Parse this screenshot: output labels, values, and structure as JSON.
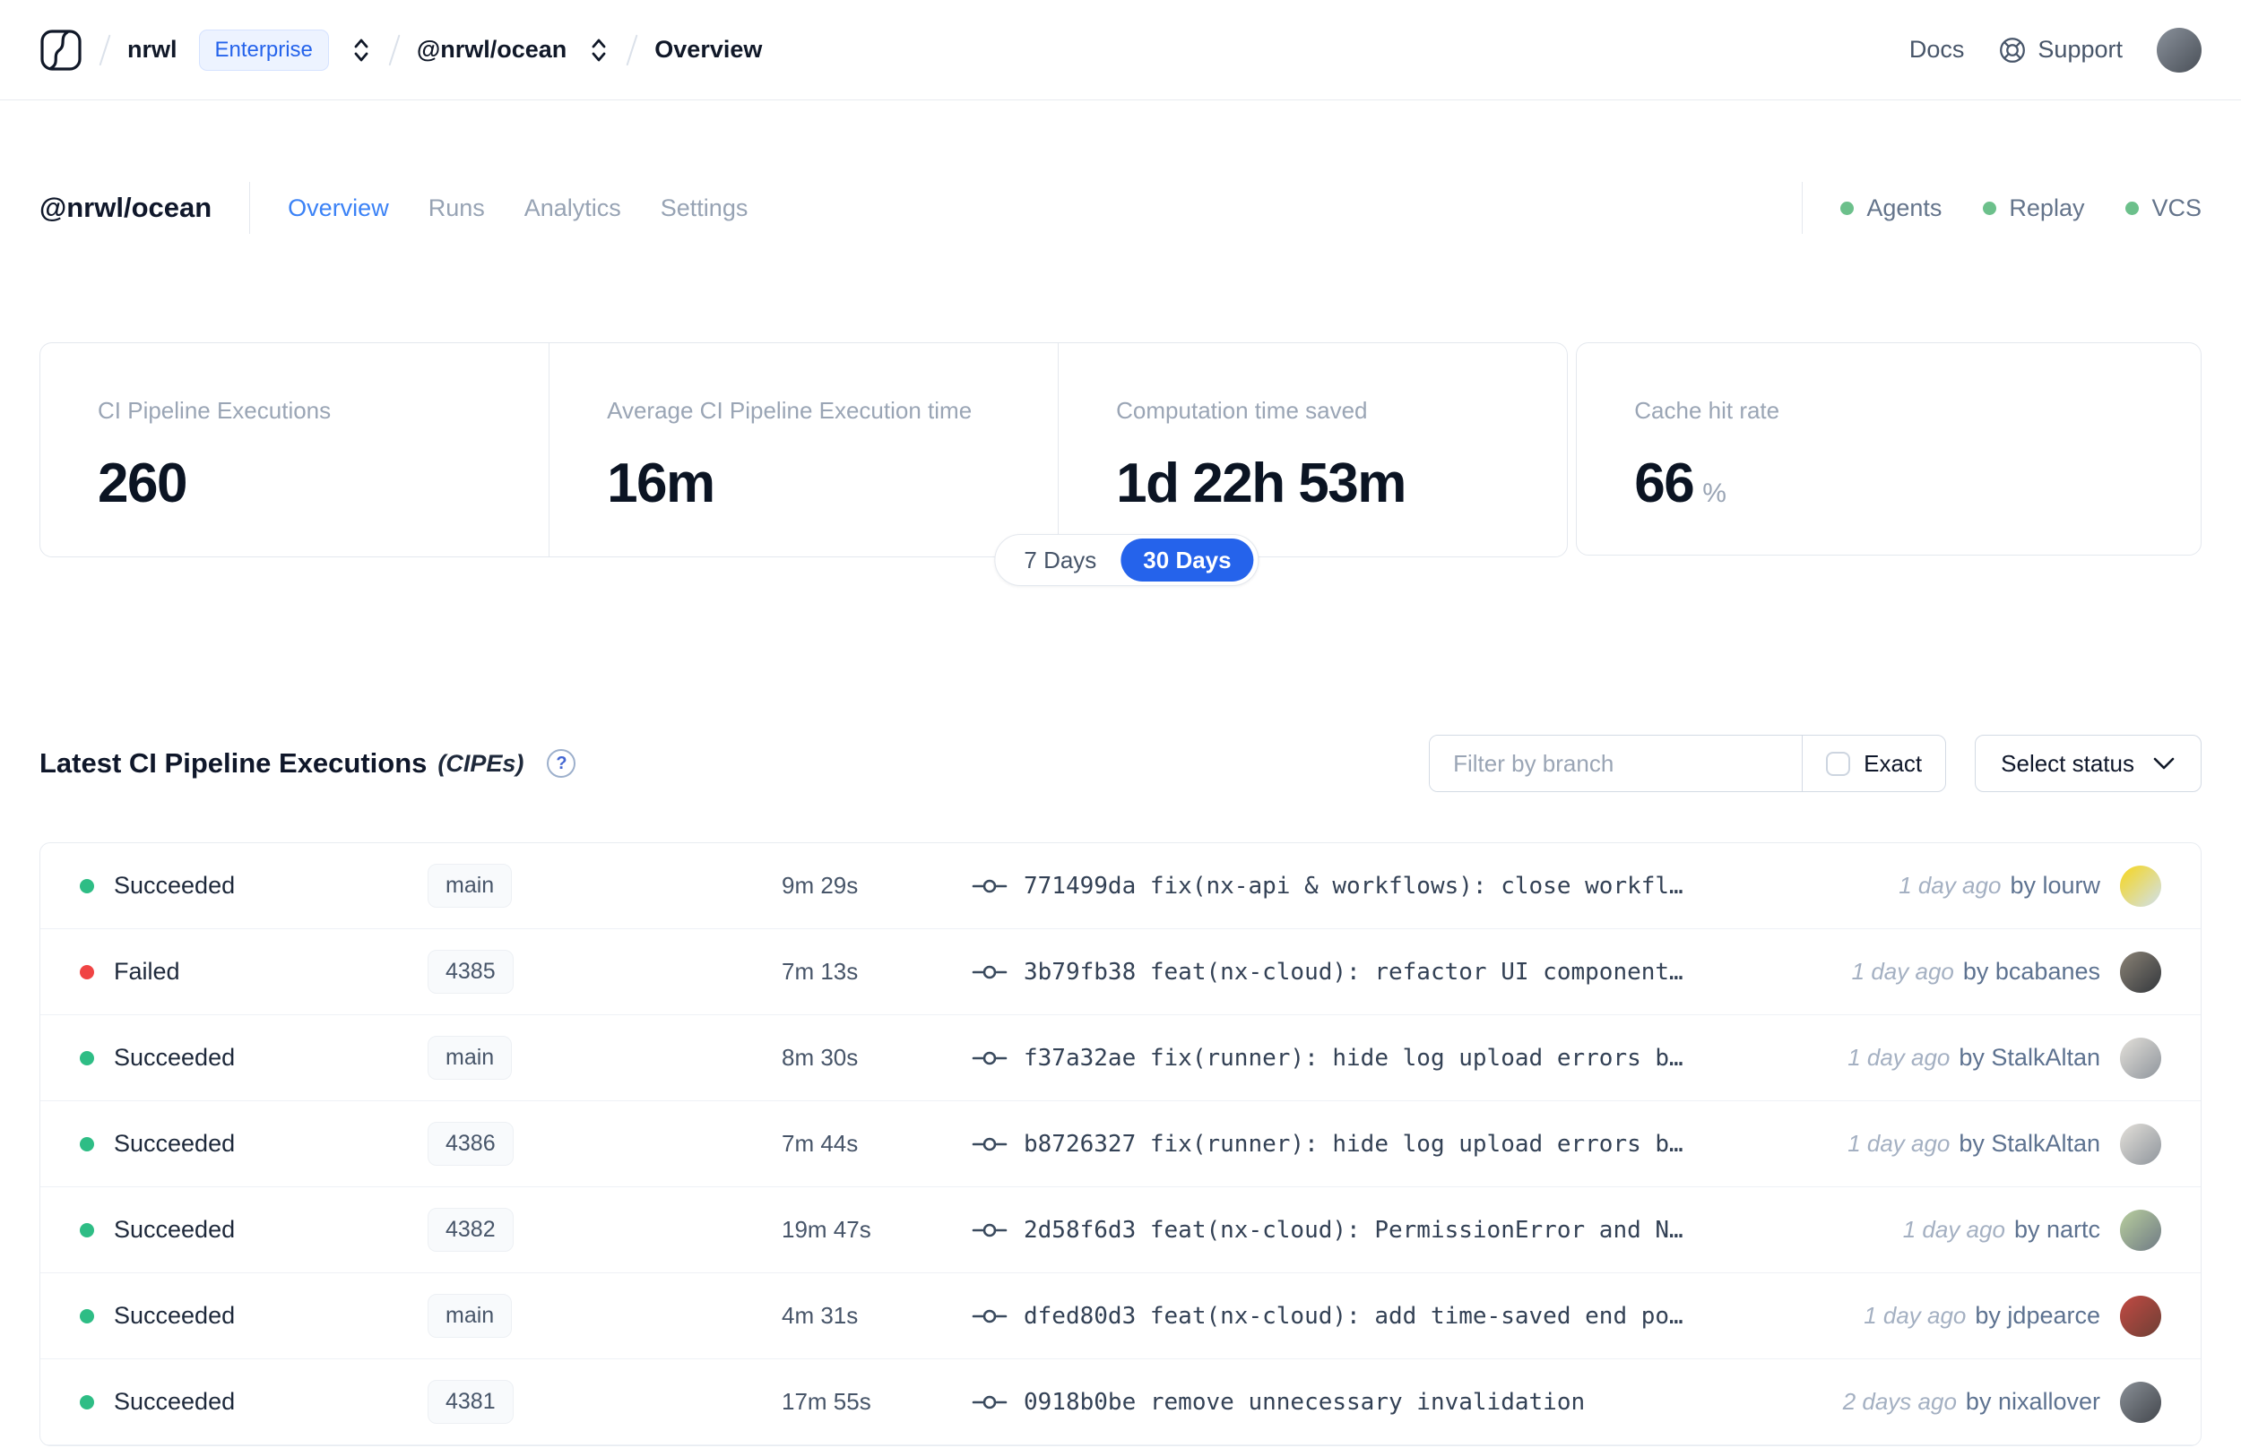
{
  "colors": {
    "accent_blue": "#2563eb",
    "tab_blue": "#3b82f6",
    "success_green": "#2ebd85",
    "failed_red": "#f04444",
    "header_dot_green": "#6cc08b"
  },
  "nav": {
    "org": "nrwl",
    "org_badge": "Enterprise",
    "workspace": "@nrwl/ocean",
    "page": "Overview",
    "docs_label": "Docs",
    "support_label": "Support",
    "avatar_colors": [
      "#8a919b",
      "#4a5058"
    ]
  },
  "workspace_header": {
    "title": "@nrwl/ocean",
    "tabs": [
      {
        "label": "Overview",
        "active": true
      },
      {
        "label": "Runs",
        "active": false
      },
      {
        "label": "Analytics",
        "active": false
      },
      {
        "label": "Settings",
        "active": false
      }
    ],
    "statuses": [
      {
        "label": "Agents"
      },
      {
        "label": "Replay"
      },
      {
        "label": "VCS"
      }
    ]
  },
  "stats": {
    "cards": [
      {
        "label": "CI Pipeline Executions",
        "value": "260"
      },
      {
        "label": "Average CI Pipeline Execution time",
        "value": "16m"
      },
      {
        "label": "Computation time saved",
        "value": "1d 22h 53m"
      },
      {
        "label": "Cache hit rate",
        "value": "66",
        "unit": "%"
      }
    ],
    "range_toggle": {
      "options": [
        "7 Days",
        "30 Days"
      ],
      "selected": "30 Days"
    }
  },
  "cipe_section": {
    "title": "Latest CI Pipeline Executions",
    "title_suffix": "(CIPEs)",
    "help_icon": "?",
    "filter_placeholder": "Filter by branch",
    "exact_label": "Exact",
    "status_select_label": "Select status",
    "rows": [
      {
        "ok": true,
        "status": "Succeeded",
        "branch": "main",
        "duration": "9m 29s",
        "commit": "771499da fix(nx-api & workflows): close workfl…",
        "time_ago": "1 day ago",
        "author": "by lourw",
        "avatar": [
          "#f7d61a",
          "#cfe0ee"
        ]
      },
      {
        "ok": false,
        "status": "Failed",
        "branch": "4385",
        "duration": "7m 13s",
        "commit": "3b79fb38 feat(nx-cloud): refactor UI component…",
        "time_ago": "1 day ago",
        "author": "by bcabanes",
        "avatar": [
          "#8b8376",
          "#33373c"
        ]
      },
      {
        "ok": true,
        "status": "Succeeded",
        "branch": "main",
        "duration": "8m 30s",
        "commit": "f37a32ae fix(runner): hide log upload errors b…",
        "time_ago": "1 day ago",
        "author": "by StalkAltan",
        "avatar": [
          "#e3e0da",
          "#8f959c"
        ]
      },
      {
        "ok": true,
        "status": "Succeeded",
        "branch": "4386",
        "duration": "7m 44s",
        "commit": "b8726327 fix(runner): hide log upload errors b…",
        "time_ago": "1 day ago",
        "author": "by StalkAltan",
        "avatar": [
          "#e3e0da",
          "#8f959c"
        ]
      },
      {
        "ok": true,
        "status": "Succeeded",
        "branch": "4382",
        "duration": "19m 47s",
        "commit": "2d58f6d3 feat(nx-cloud): PermissionError and N…",
        "time_ago": "1 day ago",
        "author": "by nartc",
        "avatar": [
          "#b9cf9e",
          "#6f7a85"
        ]
      },
      {
        "ok": true,
        "status": "Succeeded",
        "branch": "main",
        "duration": "4m 31s",
        "commit": "dfed80d3 feat(nx-cloud): add time-saved end po…",
        "time_ago": "1 day ago",
        "author": "by jdpearce",
        "avatar": [
          "#c24a43",
          "#6e3f35"
        ]
      },
      {
        "ok": true,
        "status": "Succeeded",
        "branch": "4381",
        "duration": "17m 55s",
        "commit": "0918b0be remove unnecessary invalidation",
        "time_ago": "2 days ago",
        "author": "by nixallover",
        "avatar": [
          "#8a9097",
          "#43474d"
        ]
      }
    ]
  }
}
